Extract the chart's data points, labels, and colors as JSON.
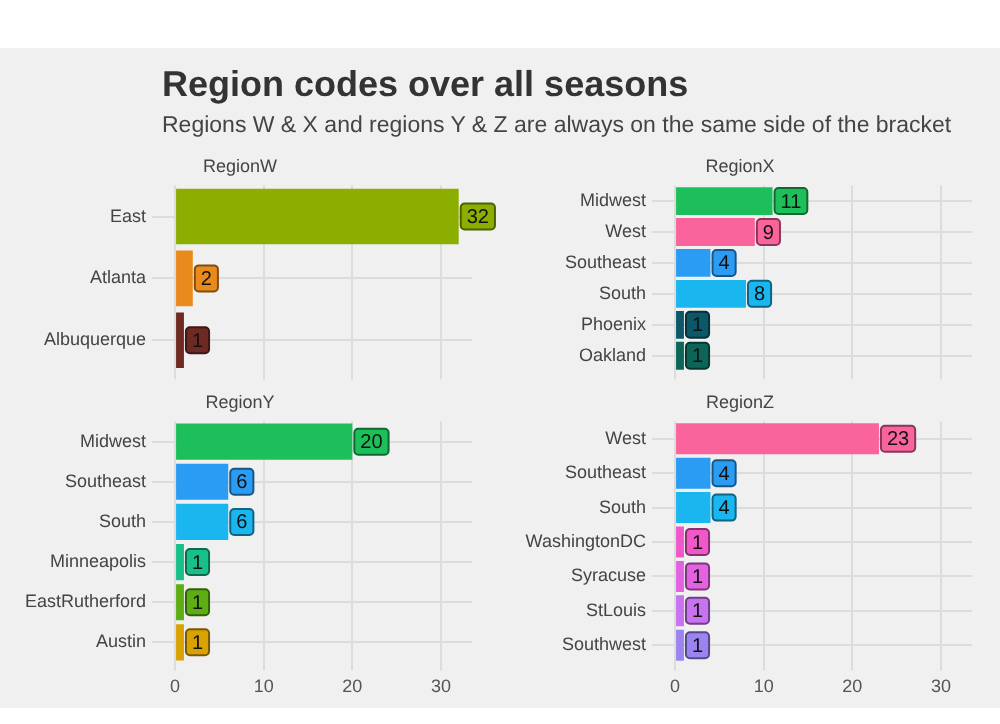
{
  "chart_data": [
    {
      "type": "bar",
      "orientation": "horizontal",
      "title": "Region codes over all seasons",
      "subtitle": "Regions W & X and regions Y & Z are always on the same side of the bracket",
      "annotations": [
        "RegionW"
      ],
      "categories": [
        "East",
        "Atlanta",
        "Albuquerque"
      ],
      "values": [
        32,
        2,
        1
      ],
      "colors": [
        "#8cae00",
        "#e98a1c",
        "#6e2a22"
      ],
      "xlim": [
        -1.7,
        33.5
      ],
      "xticks": [
        0,
        10,
        20,
        30
      ],
      "grid": true,
      "data_labels": true,
      "tick_labels": "y",
      "legend": false
    },
    {
      "type": "bar",
      "orientation": "horizontal",
      "annotations": [
        "RegionX"
      ],
      "categories": [
        "Midwest",
        "West",
        "Southeast",
        "South",
        "Phoenix",
        "Oakland"
      ],
      "values": [
        11,
        9,
        4,
        8,
        1,
        1
      ],
      "colors": [
        "#1dbf5b",
        "#f8649b",
        "#2b9cf3",
        "#19b6ef",
        "#0b5868",
        "#0b6658"
      ],
      "xlim": [
        -1.7,
        33.5
      ],
      "xticks": [
        0,
        10,
        20,
        30
      ],
      "grid": true,
      "data_labels": true,
      "tick_labels": "y",
      "legend": false
    },
    {
      "type": "bar",
      "orientation": "horizontal",
      "annotations": [
        "RegionY"
      ],
      "categories": [
        "Midwest",
        "Southeast",
        "South",
        "Minneapolis",
        "EastRutherford",
        "Austin"
      ],
      "values": [
        20,
        6,
        6,
        1,
        1,
        1
      ],
      "colors": [
        "#1dbf5b",
        "#2b9cf3",
        "#19b6ef",
        "#17c08a",
        "#5cae12",
        "#d9a200"
      ],
      "xlim": [
        -1.7,
        33.5
      ],
      "xticks": [
        0,
        10,
        20,
        30
      ],
      "grid": true,
      "data_labels": true,
      "legend": false
    },
    {
      "type": "bar",
      "orientation": "horizontal",
      "annotations": [
        "RegionZ"
      ],
      "categories": [
        "West",
        "Southeast",
        "South",
        "WashingtonDC",
        "Syracuse",
        "StLouis",
        "Southwest"
      ],
      "values": [
        23,
        4,
        4,
        1,
        1,
        1,
        1
      ],
      "colors": [
        "#f8649b",
        "#2b9cf3",
        "#19b6ef",
        "#f157c9",
        "#e462e2",
        "#c872f2",
        "#9b84f2"
      ],
      "xlim": [
        -1.7,
        33.5
      ],
      "xticks": [
        0,
        10,
        20,
        30
      ],
      "grid": true,
      "data_labels": true,
      "legend": false
    }
  ]
}
